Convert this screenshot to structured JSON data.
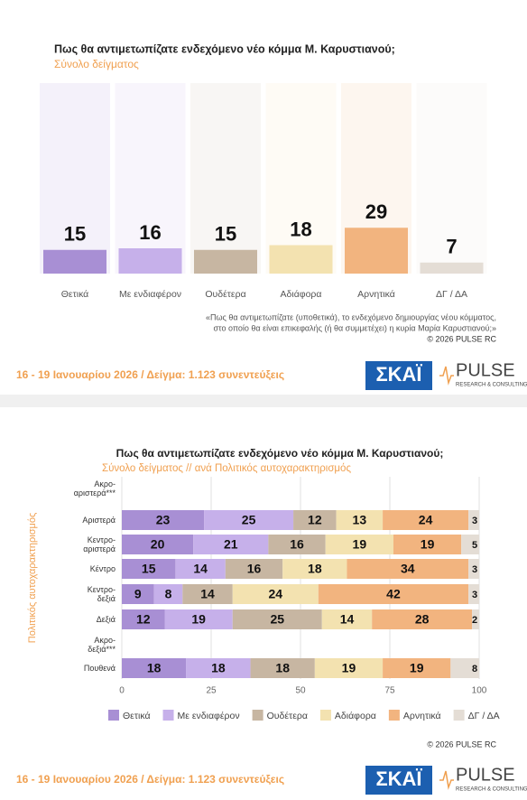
{
  "chart_data": [
    {
      "type": "bar",
      "title": "Πως θα αντιμετωπίζατε ενδεχόμενο νέο κόμμα Μ. Καρυστιανού;",
      "subtitle": "Σύνολο δείγματος",
      "categories": [
        "Θετικά",
        "Με ενδιαφέρον",
        "Ουδέτερα",
        "Αδιάφορα",
        "Αρνητικά",
        "ΔΓ / ΔΑ"
      ],
      "values": [
        15,
        16,
        15,
        18,
        29,
        7
      ],
      "colors": [
        "#a88fd4",
        "#c6b0ea",
        "#c7b6a2",
        "#f3e2b0",
        "#f2b47f",
        "#e4ddd5"
      ],
      "notes": [
        "«Πως θα αντιμετωπίζατε (υποθετικά), το ενδεχόμενο δημιουργίας νέου κόμματος,",
        "στο οποίο θα είναι επικεφαλής (ή θα συμμετέχει) η κυρία Μαρία Καρυστιανού;»"
      ],
      "copyright": "© 2026 PULSE RC",
      "footer": "16 - 19 Ιανουαρίου 2026  /  Δείγμα:  1.123 συνεντεύξεις",
      "logos": [
        "ΣΚΑΪ",
        "PULSE",
        "RESEARCH & CONSULTING"
      ]
    },
    {
      "type": "stacked_barh",
      "title": "Πως θα αντιμετωπίζατε ενδεχόμενο νέο κόμμα Μ. Καρυστιανού;",
      "subtitle": "Σύνολο δείγματος // ανά Πολιτικός αυτοχαρακτηρισμός",
      "ylabel": "Πολιτικός αυτοχαρακτηρισμός",
      "categories": [
        "Ακρο-\nαριστερά***",
        "Αριστερά",
        "Κεντρο-\nαριστερά",
        "Κέντρο",
        "Κεντρο-\nδεξιά",
        "Δεξιά",
        "Ακρο-\nδεξιά***",
        "Πουθενά"
      ],
      "series": [
        {
          "name": "Θετικά",
          "color": "#a88fd4",
          "values": [
            null,
            23,
            20,
            15,
            9,
            12,
            null,
            18
          ]
        },
        {
          "name": "Με ενδιαφέρον",
          "color": "#c6b0ea",
          "values": [
            null,
            25,
            21,
            14,
            8,
            19,
            null,
            18
          ]
        },
        {
          "name": "Ουδέτερα",
          "color": "#c7b6a2",
          "values": [
            null,
            12,
            16,
            16,
            14,
            25,
            null,
            18
          ]
        },
        {
          "name": "Αδιάφορα",
          "color": "#f3e2b0",
          "values": [
            null,
            13,
            19,
            18,
            24,
            14,
            null,
            19
          ]
        },
        {
          "name": "Αρνητικά",
          "color": "#f2b47f",
          "values": [
            null,
            24,
            19,
            34,
            42,
            28,
            null,
            19
          ]
        },
        {
          "name": "ΔΓ / ΔΑ",
          "color": "#e4ddd5",
          "values": [
            null,
            3,
            5,
            3,
            3,
            2,
            null,
            8
          ]
        }
      ],
      "xlim": [
        0,
        100
      ],
      "xticks": [
        0,
        25,
        50,
        75,
        100
      ],
      "grid": true,
      "legend": "bottom",
      "copyright": "© 2026 PULSE RC",
      "footer": "16 - 19 Ιανουαρίου 2026  /  Δείγμα:  1.123 συνεντεύξεις",
      "logos": [
        "ΣΚΑΪ",
        "PULSE",
        "RESEARCH & CONSULTING"
      ]
    }
  ]
}
